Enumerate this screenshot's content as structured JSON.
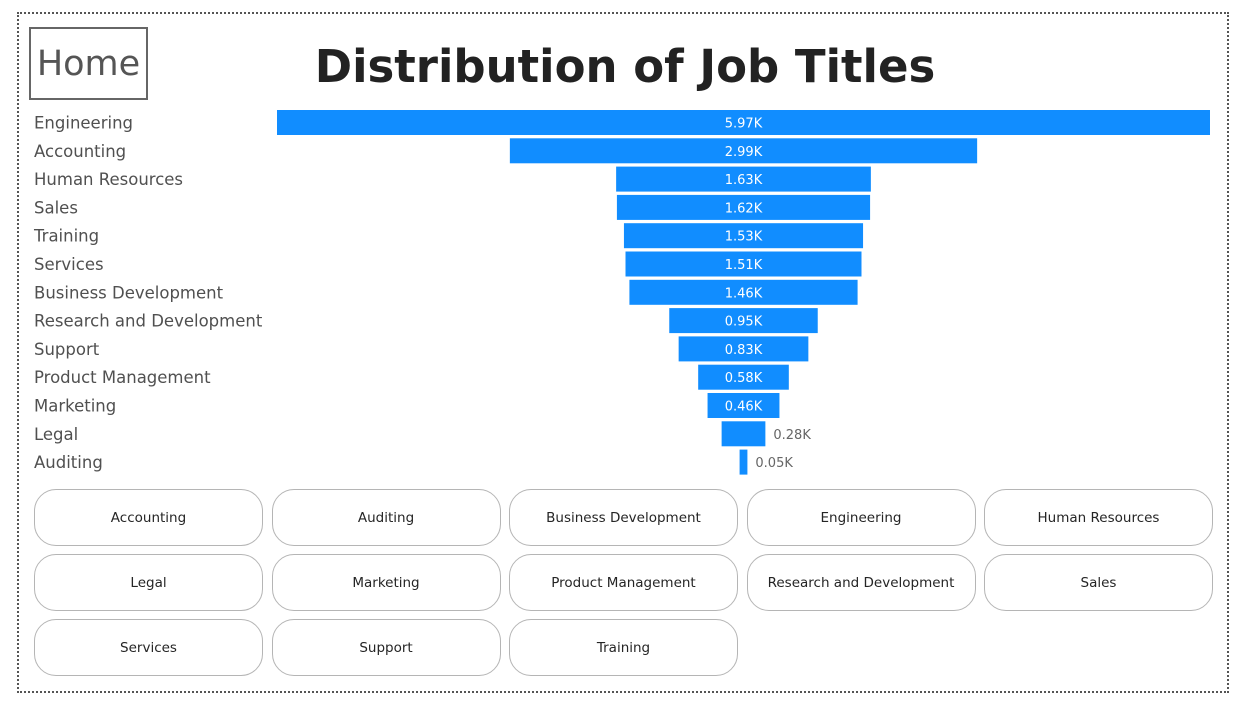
{
  "header": {
    "home_label": "Home",
    "title": "Distribution of Job Titles"
  },
  "colors": {
    "bar": "#118dff",
    "category_text": "#505050",
    "outside_label": "#666666",
    "inside_label": "#ffffff"
  },
  "chart_data": {
    "type": "funnel",
    "title": "Distribution of Job Titles",
    "categories": [
      "Engineering",
      "Accounting",
      "Human Resources",
      "Sales",
      "Training",
      "Services",
      "Business Development",
      "Research and Development",
      "Support",
      "Product Management",
      "Marketing",
      "Legal",
      "Auditing"
    ],
    "values": [
      5970,
      2990,
      1630,
      1620,
      1530,
      1510,
      1460,
      950,
      830,
      580,
      460,
      280,
      50
    ],
    "data_labels": [
      "5.97K",
      "2.99K",
      "1.63K",
      "1.62K",
      "1.53K",
      "1.51K",
      "1.46K",
      "0.95K",
      "0.83K",
      "0.58K",
      "0.46K",
      "0.28K",
      "0.05K"
    ]
  },
  "slicer": {
    "buttons": [
      "Accounting",
      "Auditing",
      "Business Development",
      "Engineering",
      "Human Resources",
      "Legal",
      "Marketing",
      "Product Management",
      "Research and Development",
      "Sales",
      "Services",
      "Support",
      "Training"
    ]
  }
}
